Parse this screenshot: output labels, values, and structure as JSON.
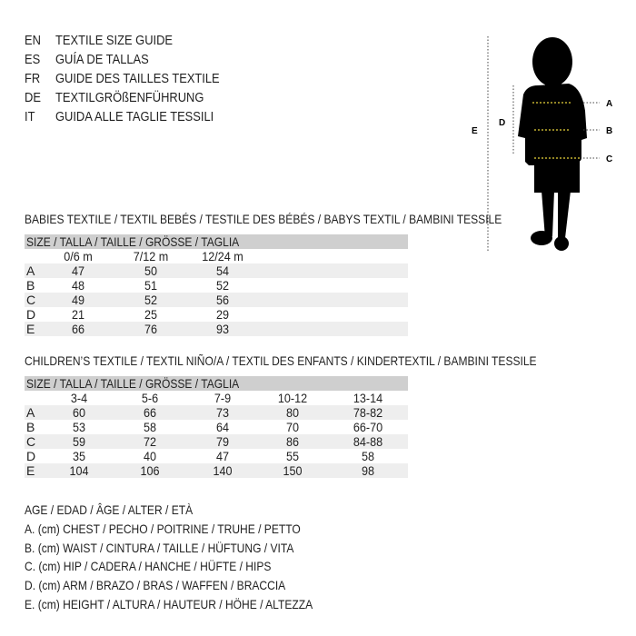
{
  "languages": [
    {
      "code": "EN",
      "text": "TEXTILE SIZE GUIDE"
    },
    {
      "code": "ES",
      "text": "GUÍA DE TALLAS"
    },
    {
      "code": "FR",
      "text": "GUIDE DES TAILLES TEXTILE"
    },
    {
      "code": "DE",
      "text": "TEXTILGRÖßENFÜHRUNG"
    },
    {
      "code": "IT",
      "text": "GUIDA ALLE TAGLIE TESSILI"
    }
  ],
  "figure": {
    "labels": {
      "a": "A",
      "b": "B",
      "c": "C",
      "d": "D",
      "e": "E"
    },
    "marker_color": "#e8d23a"
  },
  "babies": {
    "title": "BABIES TEXTILE / TEXTIL BEBÉS / TESTILE DES BÉBÉS / BABYS TEXTIL / BAMBINI TESSILE",
    "header": "SIZE / TALLA / TAILLE / GRÖSSE / TAGLIA",
    "columns": [
      "0/6 m",
      "7/12 m",
      "12/24 m"
    ],
    "rows": [
      {
        "label": "A",
        "values": [
          "47",
          "50",
          "54"
        ]
      },
      {
        "label": "B",
        "values": [
          "48",
          "51",
          "52"
        ]
      },
      {
        "label": "C",
        "values": [
          "49",
          "52",
          "56"
        ]
      },
      {
        "label": "D",
        "values": [
          "21",
          "25",
          "29"
        ]
      },
      {
        "label": "E",
        "values": [
          "66",
          "76",
          "93"
        ]
      }
    ]
  },
  "children": {
    "title": "CHILDREN’S TEXTILE / TEXTIL NIÑO/A / TEXTIL DES ENFANTS / KINDERTEXTIL / BAMBINI TESSILE",
    "header": "SIZE / TALLA / TAILLE / GRÖSSE / TAGLIA",
    "columns": [
      "3-4",
      "5-6",
      "7-9",
      "10-12",
      "13-14"
    ],
    "rows": [
      {
        "label": "A",
        "values": [
          "60",
          "66",
          "73",
          "80",
          "78-82"
        ]
      },
      {
        "label": "B",
        "values": [
          "53",
          "58",
          "64",
          "70",
          "66-70"
        ]
      },
      {
        "label": "C",
        "values": [
          "59",
          "72",
          "79",
          "86",
          "84-88"
        ]
      },
      {
        "label": "D",
        "values": [
          "35",
          "40",
          "47",
          "55",
          "58"
        ]
      },
      {
        "label": "E",
        "values": [
          "104",
          "106",
          "140",
          "150",
          "98"
        ]
      }
    ]
  },
  "legend": [
    "AGE / EDAD / ÂGE / ALTER / ETÀ",
    "A. (cm) CHEST / PECHO / POITRINE / TRUHE / PETTO",
    "B. (cm) WAIST / CINTURA / TAILLE / HÜFTUNG / VITA",
    "C. (cm) HIP / CADERA / HANCHE / HÜFTE / HIPS",
    "D. (cm) ARM / BRAZO / BRAS / WAFFEN / BRACCIA",
    "E. (cm) HEIGHT / ALTURA / HAUTEUR / HÖHE / ALTEZZA"
  ]
}
